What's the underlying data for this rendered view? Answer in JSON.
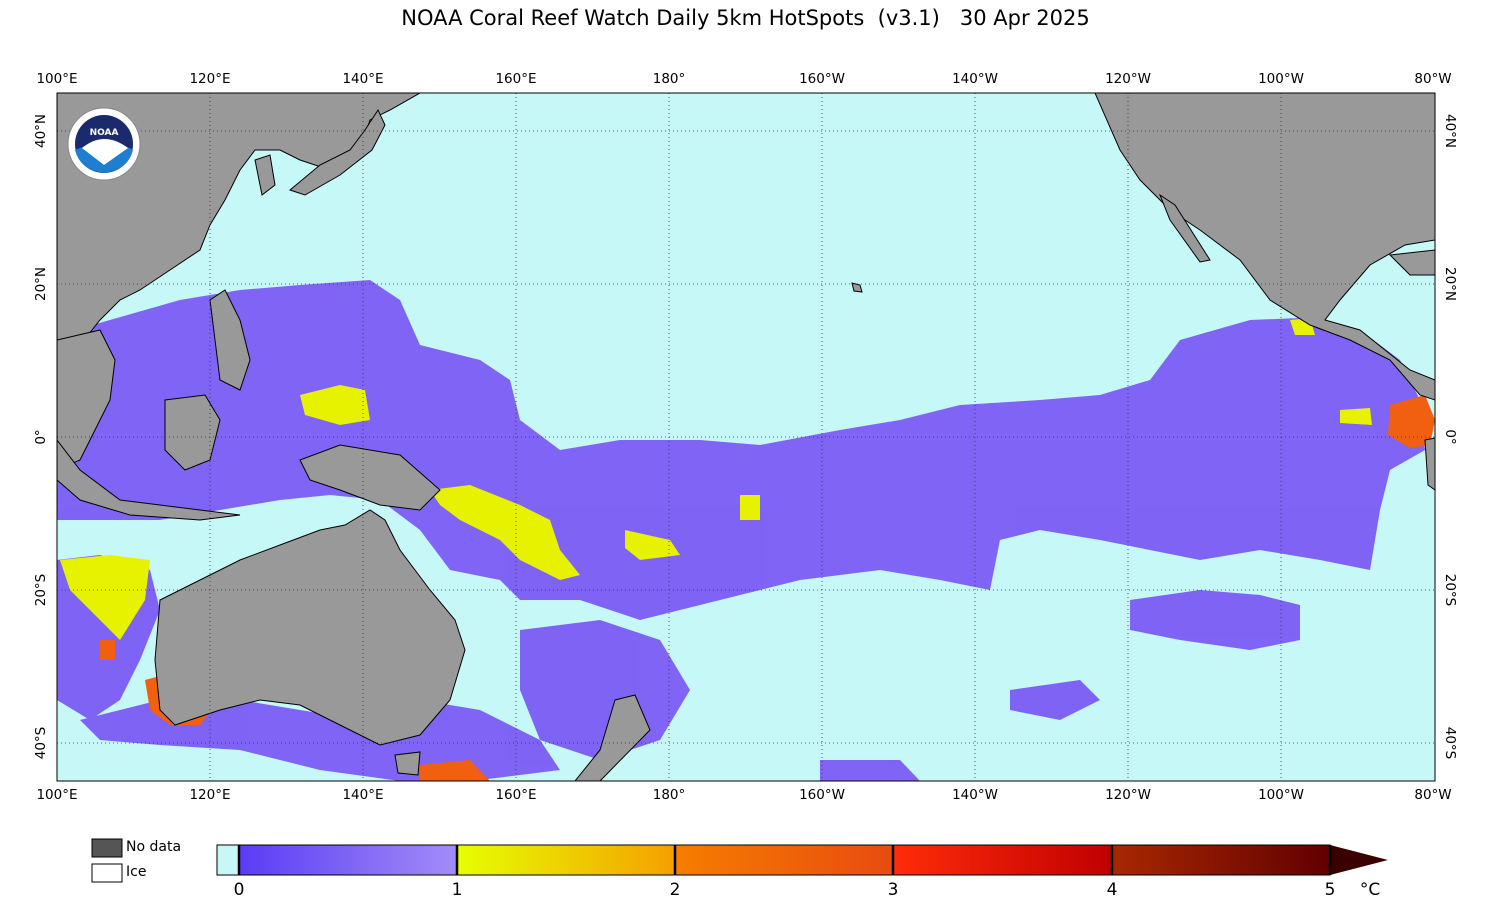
{
  "title": "NOAA Coral Reef Watch Daily 5km HotSpots  (v3.1)   30 Apr 2025",
  "map": {
    "lon_labels": [
      "100°E",
      "120°E",
      "140°E",
      "160°E",
      "180°",
      "160°W",
      "140°W",
      "120°W",
      "100°W",
      "80°W"
    ],
    "lat_labels_left": [
      "40°N",
      "20°N",
      "0°",
      "20°S",
      "40°S"
    ],
    "lat_labels_right": [
      "40°N",
      "20°N",
      "0°",
      "20°S",
      "40°S"
    ],
    "logo_text": "NOAA",
    "colors": {
      "ocean": "#c6f8f7",
      "land": "#999999",
      "hotspot_low": "#7b5cf5",
      "hotspot_mid": "#e6f200",
      "hotspot_high": "#f06010"
    }
  },
  "legend": {
    "no_data_label": "No data",
    "ice_label": "Ice",
    "no_data_color": "#555555",
    "ice_color": "#ffffff",
    "ticks": [
      "0",
      "1",
      "2",
      "3",
      "4",
      "5"
    ],
    "unit": "°C"
  }
}
